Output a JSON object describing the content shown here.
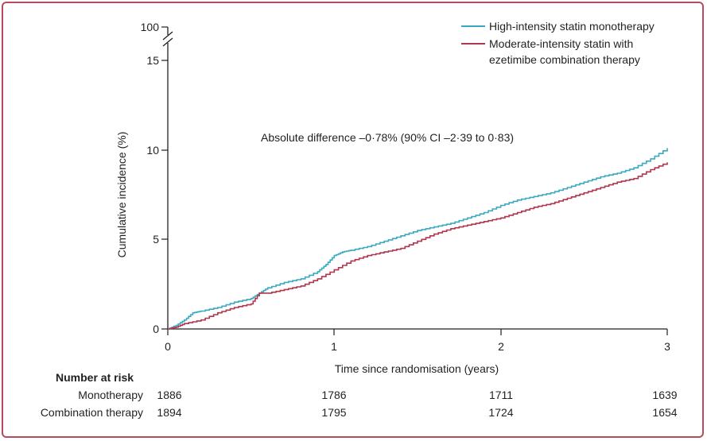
{
  "chart_data": {
    "type": "line",
    "ylabel": "Cumulative incidence (%)",
    "xlabel": "Time since randomisation (years)",
    "x_ticks": [
      "0",
      "1",
      "2",
      "3"
    ],
    "y_ticks": [
      "0",
      "5",
      "10",
      "15",
      "100"
    ],
    "xlim": [
      0,
      3
    ],
    "ylim": [
      0,
      15
    ],
    "y_axis_break": true,
    "annotation": "Absolute difference –0·78% (90% CI –2·39 to 0·83)",
    "legend": {
      "position": "top-right"
    },
    "series": [
      {
        "name": "High-intensity statin monotherapy",
        "color": "#3aa9c1",
        "points": [
          [
            0,
            0
          ],
          [
            0.05,
            0.2
          ],
          [
            0.1,
            0.5
          ],
          [
            0.15,
            0.9
          ],
          [
            0.2,
            1.0
          ],
          [
            0.3,
            1.2
          ],
          [
            0.4,
            1.5
          ],
          [
            0.5,
            1.7
          ],
          [
            0.55,
            2.0
          ],
          [
            0.6,
            2.3
          ],
          [
            0.7,
            2.6
          ],
          [
            0.8,
            2.8
          ],
          [
            0.9,
            3.2
          ],
          [
            0.95,
            3.6
          ],
          [
            1.0,
            4.1
          ],
          [
            1.05,
            4.3
          ],
          [
            1.1,
            4.4
          ],
          [
            1.2,
            4.6
          ],
          [
            1.3,
            4.9
          ],
          [
            1.4,
            5.2
          ],
          [
            1.5,
            5.5
          ],
          [
            1.6,
            5.7
          ],
          [
            1.7,
            5.9
          ],
          [
            1.8,
            6.2
          ],
          [
            1.9,
            6.5
          ],
          [
            2.0,
            6.9
          ],
          [
            2.1,
            7.2
          ],
          [
            2.2,
            7.4
          ],
          [
            2.3,
            7.6
          ],
          [
            2.4,
            7.9
          ],
          [
            2.5,
            8.2
          ],
          [
            2.6,
            8.5
          ],
          [
            2.7,
            8.7
          ],
          [
            2.8,
            9.0
          ],
          [
            2.9,
            9.5
          ],
          [
            3.0,
            10.1
          ]
        ]
      },
      {
        "name": "Moderate-intensity statin with ezetimibe combination therapy",
        "color": "#b0364d",
        "points": [
          [
            0,
            0
          ],
          [
            0.05,
            0.1
          ],
          [
            0.1,
            0.3
          ],
          [
            0.2,
            0.5
          ],
          [
            0.3,
            0.9
          ],
          [
            0.4,
            1.2
          ],
          [
            0.5,
            1.4
          ],
          [
            0.55,
            2.0
          ],
          [
            0.6,
            2.0
          ],
          [
            0.7,
            2.2
          ],
          [
            0.8,
            2.4
          ],
          [
            0.9,
            2.8
          ],
          [
            1.0,
            3.3
          ],
          [
            1.1,
            3.8
          ],
          [
            1.2,
            4.1
          ],
          [
            1.3,
            4.3
          ],
          [
            1.4,
            4.5
          ],
          [
            1.5,
            4.9
          ],
          [
            1.6,
            5.3
          ],
          [
            1.7,
            5.6
          ],
          [
            1.8,
            5.8
          ],
          [
            1.9,
            6.0
          ],
          [
            2.0,
            6.2
          ],
          [
            2.1,
            6.5
          ],
          [
            2.2,
            6.8
          ],
          [
            2.3,
            7.0
          ],
          [
            2.4,
            7.3
          ],
          [
            2.5,
            7.6
          ],
          [
            2.6,
            7.9
          ],
          [
            2.7,
            8.2
          ],
          [
            2.8,
            8.4
          ],
          [
            2.9,
            8.9
          ],
          [
            3.0,
            9.3
          ]
        ]
      }
    ]
  },
  "risk_table": {
    "title": "Number at risk",
    "rows": [
      {
        "label": "Monotherapy",
        "values": [
          "1886",
          "1786",
          "1711",
          "1639"
        ]
      },
      {
        "label": "Combination therapy",
        "values": [
          "1894",
          "1795",
          "1724",
          "1654"
        ]
      }
    ]
  }
}
